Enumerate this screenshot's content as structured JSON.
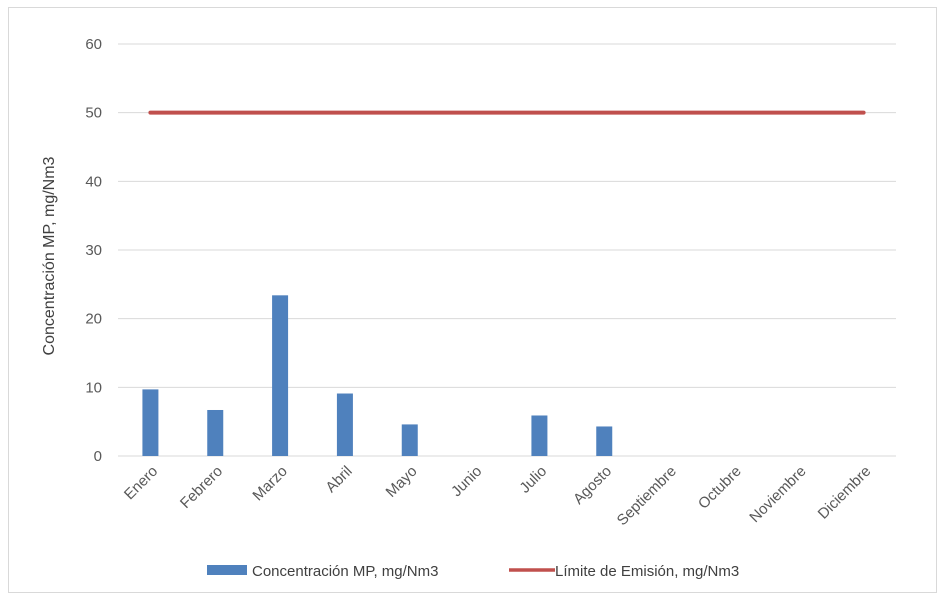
{
  "chart_data": {
    "type": "bar",
    "categories": [
      "Enero",
      "Febrero",
      "Marzo",
      "Abril",
      "Mayo",
      "Junio",
      "Julio",
      "Agosto",
      "Septiembre",
      "Octubre",
      "Noviembre",
      "Diciembre"
    ],
    "series": [
      {
        "name": "Concentración MP, mg/Nm3",
        "type": "bar",
        "color": "#4f81bd",
        "values": [
          9.7,
          6.7,
          23.4,
          9.1,
          4.6,
          0,
          5.9,
          4.3,
          0,
          0,
          0,
          0
        ]
      },
      {
        "name": "Límite de Emisión, mg/Nm3",
        "type": "line",
        "color": "#c0504d",
        "values": [
          50,
          50,
          50,
          50,
          50,
          50,
          50,
          50,
          50,
          50,
          50,
          50
        ]
      }
    ],
    "title": "",
    "xlabel": "",
    "ylabel": "Concentración MP, mg/Nm3",
    "ylim": [
      0,
      60
    ],
    "yticks": [
      0,
      10,
      20,
      30,
      40,
      50,
      60
    ],
    "grid": true,
    "legend_position": "bottom"
  }
}
